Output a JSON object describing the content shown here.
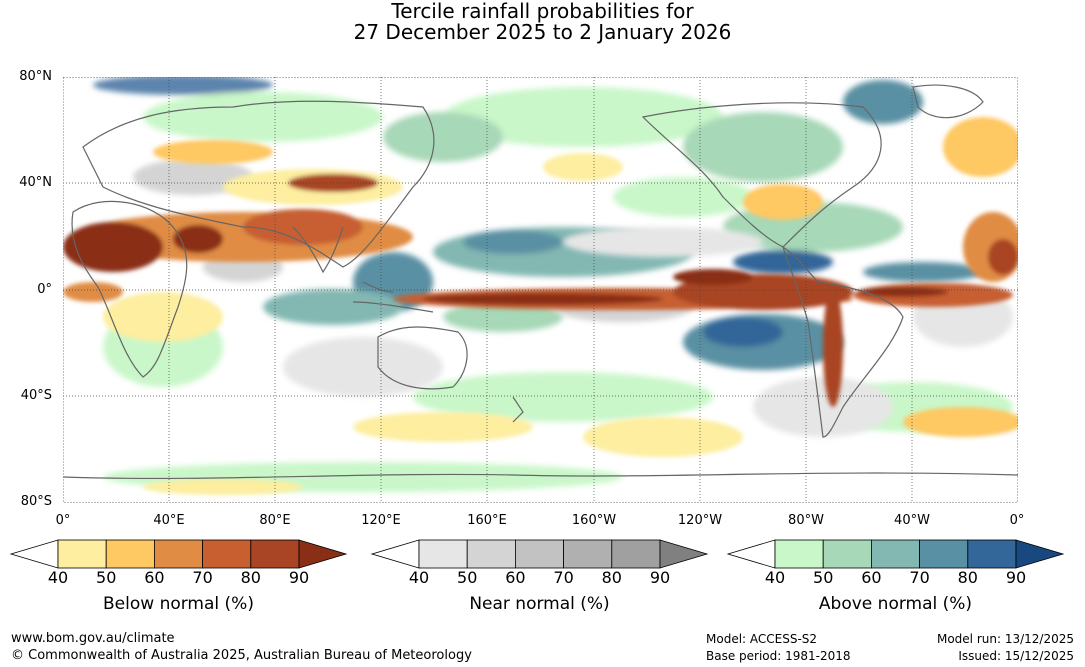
{
  "title": {
    "line1": "Tercile rainfall probabilities for",
    "line2": "27 December 2025 to 2 January 2026"
  },
  "axes": {
    "lat_labels": [
      "80°N",
      "40°N",
      "0°",
      "40°S",
      "80°S"
    ],
    "lon_labels": [
      "0°",
      "40°E",
      "80°E",
      "120°E",
      "160°E",
      "160°W",
      "120°W",
      "80°W",
      "40°W",
      "0°"
    ]
  },
  "legends": [
    {
      "title": "Below normal (%)",
      "ticks": [
        "40",
        "50",
        "60",
        "70",
        "80",
        "90"
      ],
      "colors": [
        "#fdeea0",
        "#fec862",
        "#e08c44",
        "#c75f30",
        "#a94424",
        "#8a2e16"
      ]
    },
    {
      "title": "Near normal (%)",
      "ticks": [
        "40",
        "50",
        "60",
        "70",
        "80",
        "90"
      ],
      "colors": [
        "#e6e6e6",
        "#d4d4d4",
        "#c2c2c2",
        "#b0b0b0",
        "#a0a0a0",
        "#808080"
      ]
    },
    {
      "title": "Above normal (%)",
      "ticks": [
        "40",
        "50",
        "60",
        "70",
        "80",
        "90"
      ],
      "colors": [
        "#c9f7c9",
        "#a7d8b7",
        "#82b7b2",
        "#5a90a3",
        "#336699",
        "#17487f"
      ]
    }
  ],
  "footer": {
    "url": "www.bom.gov.au/climate",
    "copyright": "© Commonwealth of Australia 2025, Australian Bureau of Meteorology",
    "model": "Model: ACCESS-S2",
    "base_period": "Base period: 1981-2018",
    "model_run": "Model run: 13/12/2025",
    "issued": "Issued: 15/12/2025"
  }
}
